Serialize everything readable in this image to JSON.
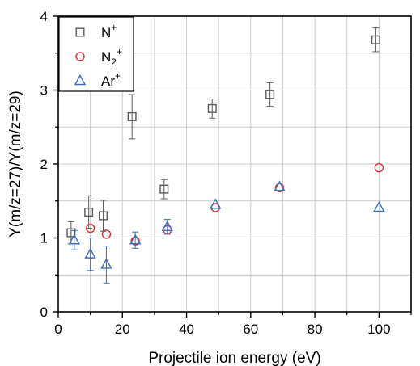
{
  "chart_data": {
    "type": "scatter",
    "xlabel": "Projectile ion energy (eV)",
    "ylabel": "Y(m/z=27)/Y(m/z=29)",
    "xlim": [
      0,
      110
    ],
    "ylim": [
      0,
      4
    ],
    "xticks": [
      0,
      20,
      40,
      60,
      80,
      100
    ],
    "yticks": [
      0,
      1,
      2,
      3,
      4
    ],
    "xminor": [
      10,
      30,
      50,
      70,
      90,
      110
    ],
    "yminor": [
      0.5,
      1.5,
      2.5,
      3.5
    ],
    "grid": true,
    "legend_position": "top-left",
    "series": [
      {
        "name": "N+",
        "label_base": "N",
        "label_sub": "",
        "label_sup": "+",
        "marker": "square",
        "color": "#5a5a5a",
        "points": [
          {
            "x": 4,
            "y": 1.07,
            "err": 0.15
          },
          {
            "x": 9.5,
            "y": 1.35,
            "err": 0.22
          },
          {
            "x": 14,
            "y": 1.3,
            "err": 0.21
          },
          {
            "x": 23,
            "y": 2.64,
            "err": 0.3
          },
          {
            "x": 33,
            "y": 1.66,
            "err": 0.13
          },
          {
            "x": 48,
            "y": 2.75,
            "err": 0.13
          },
          {
            "x": 66,
            "y": 2.94,
            "err": 0.16
          },
          {
            "x": 99,
            "y": 3.68,
            "err": 0.16
          }
        ]
      },
      {
        "name": "N2+",
        "label_base": "N",
        "label_sub": "2",
        "label_sup": "+",
        "marker": "circle",
        "color": "#e03030",
        "points": [
          {
            "x": 10,
            "y": 1.13,
            "err": 0
          },
          {
            "x": 15,
            "y": 1.05,
            "err": 0
          },
          {
            "x": 24,
            "y": 0.96,
            "err": 0
          },
          {
            "x": 34,
            "y": 1.11,
            "err": 0
          },
          {
            "x": 49,
            "y": 1.41,
            "err": 0
          },
          {
            "x": 69,
            "y": 1.68,
            "err": 0
          },
          {
            "x": 100,
            "y": 1.95,
            "err": 0
          }
        ]
      },
      {
        "name": "Ar+",
        "label_base": "Ar",
        "label_sub": "",
        "label_sup": "+",
        "marker": "triangle",
        "color": "#3a6fc4",
        "points": [
          {
            "x": 5,
            "y": 0.97,
            "err": 0.13
          },
          {
            "x": 10,
            "y": 0.78,
            "err": 0.22
          },
          {
            "x": 15,
            "y": 0.64,
            "err": 0.25
          },
          {
            "x": 24,
            "y": 0.97,
            "err": 0.11
          },
          {
            "x": 34,
            "y": 1.15,
            "err": 0.1
          },
          {
            "x": 49,
            "y": 1.45,
            "err": 0
          },
          {
            "x": 69,
            "y": 1.69,
            "err": 0
          },
          {
            "x": 100,
            "y": 1.41,
            "err": 0
          }
        ]
      }
    ]
  }
}
